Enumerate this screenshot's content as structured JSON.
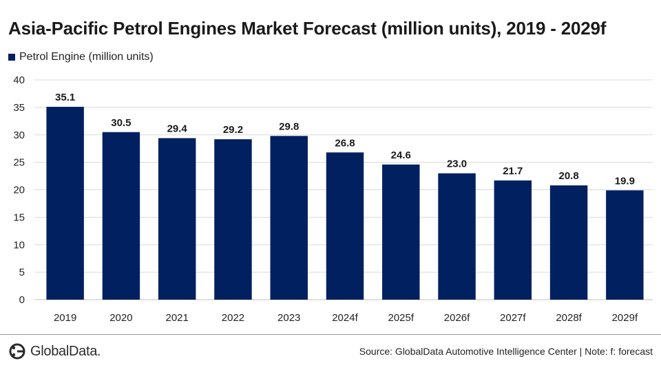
{
  "title": "Asia-Pacific Petrol Engines Market Forecast (million units), 2019 - 2029f",
  "legend": {
    "label": "Petrol Engine (million units)",
    "color": "#002060"
  },
  "footer": {
    "logo_text": "GlobalData.",
    "source": "Source: GlobalData Automotive Intelligence Center | Note: f: forecast"
  },
  "chart_data": {
    "type": "bar",
    "categories": [
      "2019",
      "2020",
      "2021",
      "2022",
      "2023",
      "2024f",
      "2025f",
      "2026f",
      "2027f",
      "2028f",
      "2029f"
    ],
    "series": [
      {
        "name": "Petrol Engine (million units)",
        "values": [
          35.1,
          30.5,
          29.4,
          29.2,
          29.8,
          26.8,
          24.6,
          23.0,
          21.7,
          20.8,
          19.9
        ],
        "labels": [
          "35.1",
          "30.5",
          "29.4",
          "29.2",
          "29.8",
          "26.8",
          "24.6",
          "23.0",
          "21.7",
          "20.8",
          "19.9"
        ],
        "color": "#002060"
      }
    ],
    "ylim": [
      0,
      40
    ],
    "yticks": [
      0,
      5,
      10,
      15,
      20,
      25,
      30,
      35,
      40
    ],
    "grid": true,
    "legend_position": "top-left"
  }
}
